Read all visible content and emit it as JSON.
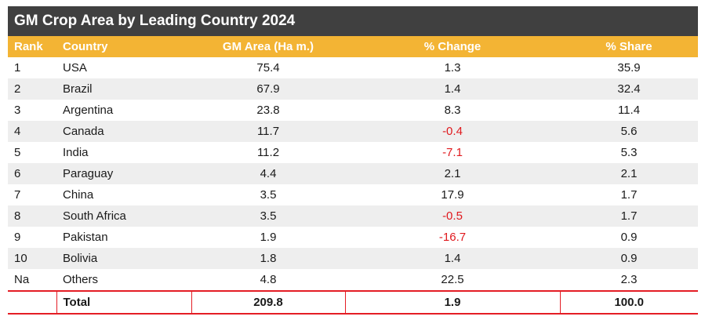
{
  "title": "GM Crop Area by Leading Country 2024",
  "columns": {
    "rank": "Rank",
    "country": "Country",
    "area": "GM Area (Ha m.)",
    "change": "% Change",
    "share": "% Share"
  },
  "rows": [
    {
      "rank": "1",
      "country": "USA",
      "area": "75.4",
      "change": "1.3",
      "share": "35.9"
    },
    {
      "rank": "2",
      "country": "Brazil",
      "area": "67.9",
      "change": "1.4",
      "share": "32.4"
    },
    {
      "rank": "3",
      "country": "Argentina",
      "area": "23.8",
      "change": "8.3",
      "share": "11.4"
    },
    {
      "rank": "4",
      "country": "Canada",
      "area": "11.7",
      "change": "-0.4",
      "share": "5.6"
    },
    {
      "rank": "5",
      "country": "India",
      "area": "11.2",
      "change": "-7.1",
      "share": "5.3"
    },
    {
      "rank": "6",
      "country": "Paraguay",
      "area": "4.4",
      "change": "2.1",
      "share": "2.1"
    },
    {
      "rank": "7",
      "country": "China",
      "area": "3.5",
      "change": "17.9",
      "share": "1.7"
    },
    {
      "rank": "8",
      "country": "South Africa",
      "area": "3.5",
      "change": "-0.5",
      "share": "1.7"
    },
    {
      "rank": "9",
      "country": "Pakistan",
      "area": "1.9",
      "change": "-16.7",
      "share": "0.9"
    },
    {
      "rank": "10",
      "country": "Bolivia",
      "area": "1.8",
      "change": "1.4",
      "share": "0.9"
    },
    {
      "rank": "Na",
      "country": "Others",
      "area": "4.8",
      "change": "22.5",
      "share": "2.3"
    }
  ],
  "total": {
    "label": "Total",
    "area": "209.8",
    "change": "1.9",
    "share": "100.0"
  },
  "colors": {
    "title_bg": "#404040",
    "header_bg": "#f3b434",
    "negative": "#e0191e",
    "total_rule": "#e41d25",
    "stripe": "#eeeeee"
  }
}
